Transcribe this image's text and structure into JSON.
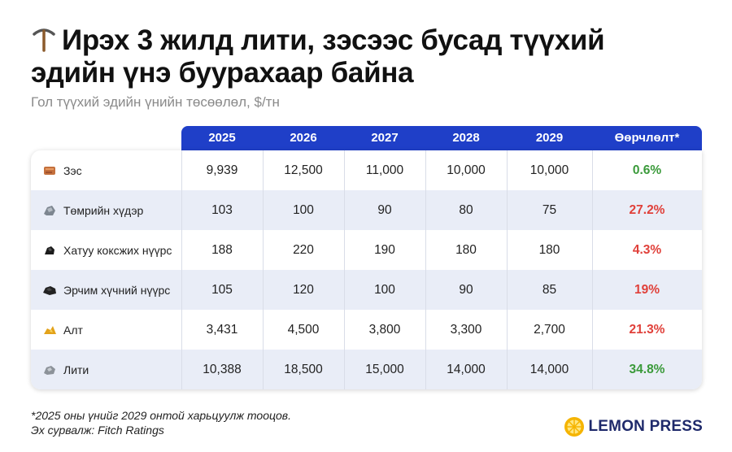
{
  "title": {
    "line1": "Ирэх 3 жилд лити, зэсээс бусад түүхий",
    "line2": "эдийн үнэ буурахаар байна",
    "icon": "pickaxe-icon"
  },
  "subtitle": "Гол түүхий эдийн үнийн төсөөлөл, $/тн",
  "chart_data": {
    "type": "table",
    "columns": [
      "2025",
      "2026",
      "2027",
      "2028",
      "2029",
      "Өөрчлөлт*"
    ],
    "rows": [
      {
        "name": "Зэс",
        "icon": "copper-ore-icon",
        "values": [
          "9,939",
          "12,500",
          "11,000",
          "10,000",
          "10,000"
        ],
        "change": "0.6%",
        "change_color": "#3a9a3a"
      },
      {
        "name": "Төмрийн хүдэр",
        "icon": "iron-ore-icon",
        "values": [
          "103",
          "100",
          "90",
          "80",
          "75"
        ],
        "change": "27.2%",
        "change_color": "#e0403a"
      },
      {
        "name": "Хатуу коксжих нүүрс",
        "icon": "coking-coal-icon",
        "values": [
          "188",
          "220",
          "190",
          "180",
          "180"
        ],
        "change": "4.3%",
        "change_color": "#e0403a"
      },
      {
        "name": "Эрчим хүчний нүүрс",
        "icon": "thermal-coal-icon",
        "values": [
          "105",
          "120",
          "100",
          "90",
          "85"
        ],
        "change": "19%",
        "change_color": "#e0403a"
      },
      {
        "name": "Алт",
        "icon": "gold-icon",
        "values": [
          "3,431",
          "4,500",
          "3,800",
          "3,300",
          "2,700"
        ],
        "change": "21.3%",
        "change_color": "#e0403a"
      },
      {
        "name": "Лити",
        "icon": "lithium-icon",
        "values": [
          "10,388",
          "18,500",
          "15,000",
          "14,000",
          "14,000"
        ],
        "change": "34.8%",
        "change_color": "#3a9a3a"
      }
    ]
  },
  "footnote": {
    "line1": "*2025 оны үнийг 2029 онтой харьцуулж тооцов.",
    "line2": "Эх сурвалж: Fitch Ratings"
  },
  "brand": {
    "name": "LEMON PRESS",
    "icon": "lemon-logo-icon",
    "accent": "#f5b400"
  },
  "colors": {
    "header": "#1f3fc8",
    "alt_row": "#e9edf7"
  }
}
